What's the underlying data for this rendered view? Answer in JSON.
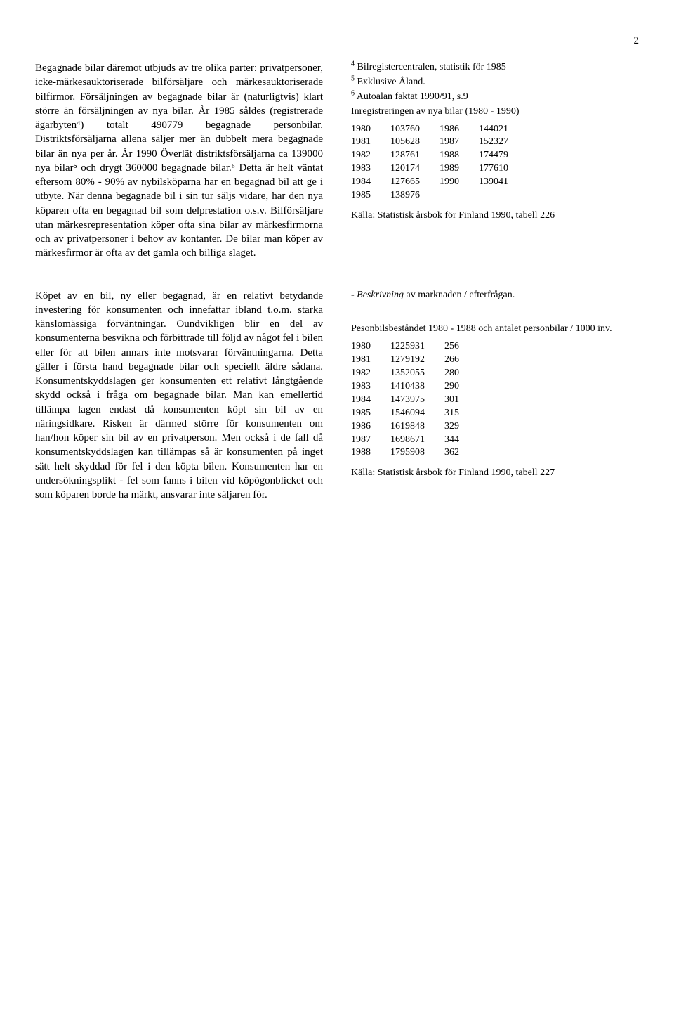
{
  "page_number": "2",
  "top_left_para": "Begagnade bilar däremot utbjuds av tre olika parter: privatpersoner, icke-märkesauktoriserade bilförsäljare och märkesauktoriserade bilfirmor. Försäljningen av begagnade bilar är (naturligtvis) klart större än försäljningen av nya bilar. År 1985 såldes (registrerade ägarbyten⁴) totalt 490779 begagnade personbilar. Distriktsförsäljarna allena säljer mer än dubbelt mera begagnade bilar än nya per år. År 1990 Överlät distriktsförsäljarna ca 139000 nya bilar⁵ och drygt 360000 begagnade bilar.⁶ Detta är helt väntat eftersom 80% - 90% av nybilsköparna har en begagnad bil att ge i utbyte. När denna begagnade bil i sin tur säljs vidare, har den nya köparen ofta en begagnad bil som delprestation o.s.v. Bilförsäljare utan märkesrepresentation köper ofta sina bilar av märkesfirmorna och av privatpersoner i behov av kontanter. De bilar man köper av märkesfirmor är ofta av det gamla och billiga slaget.",
  "footnotes": {
    "f4": "Bilregistercentralen, statistik för 1985",
    "f5": "Exklusive Åland.",
    "f6": "Autoalan faktat 1990/91, s.9"
  },
  "table1_title": "Inregistreringen av nya bilar (1980 - 1990)",
  "table1_rows": [
    [
      "1980",
      "103760",
      "1986",
      "144021"
    ],
    [
      "1981",
      "105628",
      "1987",
      "152327"
    ],
    [
      "1982",
      "128761",
      "1988",
      "174479"
    ],
    [
      "1983",
      "120174",
      "1989",
      "177610"
    ],
    [
      "1984",
      "127665",
      "1990",
      "139041"
    ],
    [
      "1985",
      "138976",
      "",
      ""
    ]
  ],
  "table1_source": "Källa: Statistisk årsbok för Finland 1990, tabell 226",
  "bottom_left_para": "Köpet av en bil, ny eller begagnad, är en relativt betydande investering för konsumenten och  innefattar ibland t.o.m. starka känslomässiga förväntningar. Oundvikligen blir en del av konsumenterna besvikna och förbittrade till följd av något fel i bilen eller för att bilen annars inte motsvarar förväntningarna. Detta gäller i första hand begagnade bilar och speciellt äldre sådana. Konsumentskyddslagen ger konsumenten ett relativt långtgående skydd också i fråga om begagnade bilar. Man kan emellertid tillämpa lagen endast då konsumenten köpt sin bil av en näringsidkare. Risken är därmed större för konsumenten om han/hon köper sin bil av en privatperson. Men också i de fall då konsumentskyddslagen kan tillämpas så är konsumenten på inget sätt helt skyddad för fel i den köpta bilen. Konsumenten har en undersökningsplikt - fel som fanns i bilen vid köpögonblicket och som köparen borde ha märkt, ansvarar inte säljaren för.",
  "bottom_right_heading_italic": "- Beskrivning",
  "bottom_right_heading_rest": " av marknaden / efterfrågan.",
  "table2_title": "Pesonbilsbeståndet 1980 - 1988 och antalet personbilar / 1000 inv.",
  "table2_rows": [
    [
      "1980",
      "1225931",
      "256"
    ],
    [
      "1981",
      "1279192",
      "266"
    ],
    [
      "1982",
      "1352055",
      "280"
    ],
    [
      "1983",
      "1410438",
      "290"
    ],
    [
      "1984",
      "1473975",
      "301"
    ],
    [
      "1985",
      "1546094",
      "315"
    ],
    [
      "1986",
      "1619848",
      "329"
    ],
    [
      "1987",
      "1698671",
      "344"
    ],
    [
      "1988",
      "1795908",
      "362"
    ]
  ],
  "table2_source": "Källa: Statistisk årsbok för Finland 1990, tabell 227"
}
